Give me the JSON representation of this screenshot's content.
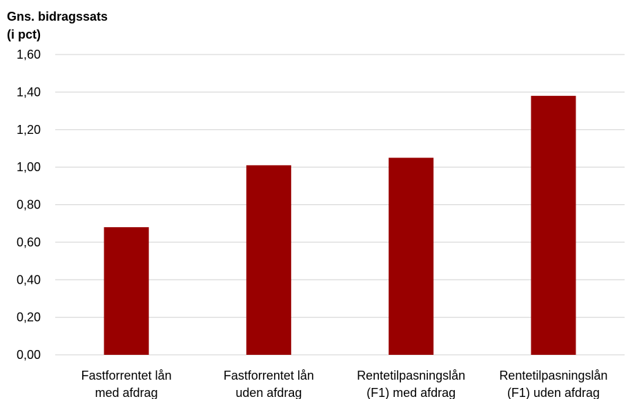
{
  "chart_data": {
    "type": "bar",
    "ylabel": [
      "Gns. bidragssats",
      "(i pct)"
    ],
    "categories": [
      [
        "Fastforrentet lån",
        "med afdrag"
      ],
      [
        "Fastforrentet lån",
        "uden afdrag"
      ],
      [
        "Rentetilpasningslån",
        "(F1) med afdrag"
      ],
      [
        "Rentetilpasningslån",
        "(F1) uden afdrag"
      ]
    ],
    "values": [
      0.68,
      1.01,
      1.05,
      1.38
    ],
    "ylim": [
      0,
      1.6
    ],
    "yticks": [
      0,
      0.2,
      0.4,
      0.6,
      0.8,
      1.0,
      1.2,
      1.4,
      1.6
    ],
    "ytick_labels": [
      "0,00",
      "0,20",
      "0,40",
      "0,60",
      "0,80",
      "1,00",
      "1,20",
      "1,40",
      "1,60"
    ],
    "grid": true,
    "bar_color": "#990000",
    "grid_color": "#d9d9d9"
  }
}
